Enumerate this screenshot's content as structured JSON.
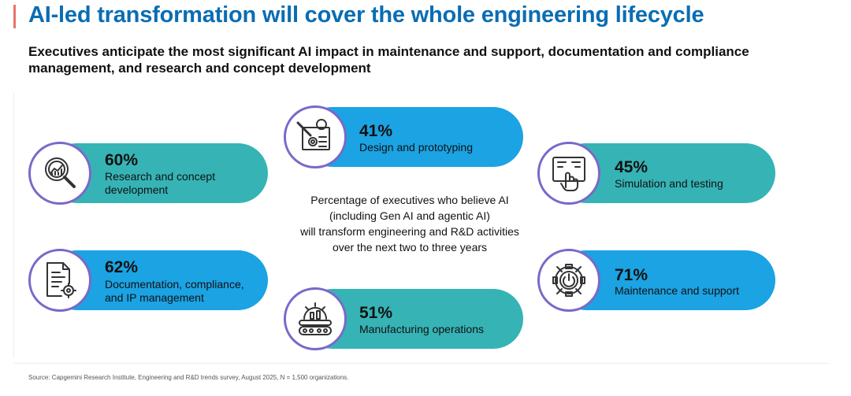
{
  "header": {
    "title": "AI-led transformation will cover the whole engineering lifecycle",
    "subtitle": "Executives anticipate the most significant AI impact in maintenance and support, documentation and compliance management, and research and concept development"
  },
  "center_text": {
    "line1": "Percentage of executives who believe AI",
    "line2": "(including Gen AI and agentic AI)",
    "line3": "will transform engineering and R&D activities",
    "line4": "over the next two to three years"
  },
  "colors": {
    "teal": "#36b3b5",
    "blue": "#1ba3e3",
    "circle_border": "#7b68c8",
    "title": "#0a6db3",
    "accent": "#e9736b"
  },
  "chart_data": {
    "type": "bar",
    "title": "Percentage of executives who believe AI (including Gen AI and agentic AI) will transform engineering and R&D activities over the next two to three years",
    "categories": [
      "Research and concept development",
      "Design and prototyping",
      "Simulation and testing",
      "Documentation, compliance, and IP management",
      "Manufacturing operations",
      "Maintenance and support"
    ],
    "values": [
      60,
      41,
      45,
      62,
      51,
      71
    ],
    "items": [
      {
        "value_label": "60%",
        "label_line1": "Research and concept",
        "label_line2": "development",
        "icon": "magnifier-chart-icon"
      },
      {
        "value_label": "41%",
        "label_line1": "Design and prototyping",
        "label_line2": "",
        "icon": "design-blueprint-icon"
      },
      {
        "value_label": "45%",
        "label_line1": "Simulation and testing",
        "label_line2": "",
        "icon": "touch-screen-icon"
      },
      {
        "value_label": "62%",
        "label_line1": "Documentation, compliance,",
        "label_line2": "and IP management",
        "icon": "document-gear-icon"
      },
      {
        "value_label": "51%",
        "label_line1": "Manufacturing operations",
        "label_line2": "",
        "icon": "factory-conveyor-icon"
      },
      {
        "value_label": "71%",
        "label_line1": "Maintenance and support",
        "label_line2": "",
        "icon": "gear-power-icon"
      }
    ]
  },
  "footer": {
    "source": "Source: Capgemini Research Institute, Engineering and R&D trends survey, August 2025, N = 1,500 organizations."
  }
}
